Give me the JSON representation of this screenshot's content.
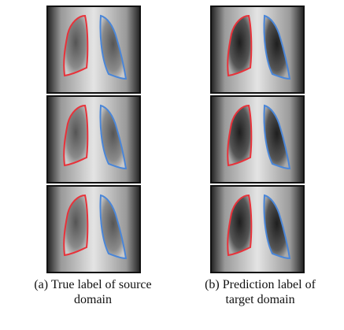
{
  "figure": {
    "captions": [
      {
        "lines": [
          "(a) True label of source",
          "domain"
        ]
      },
      {
        "lines": [
          "(b) Prediction label of",
          "target domain"
        ]
      }
    ]
  }
}
